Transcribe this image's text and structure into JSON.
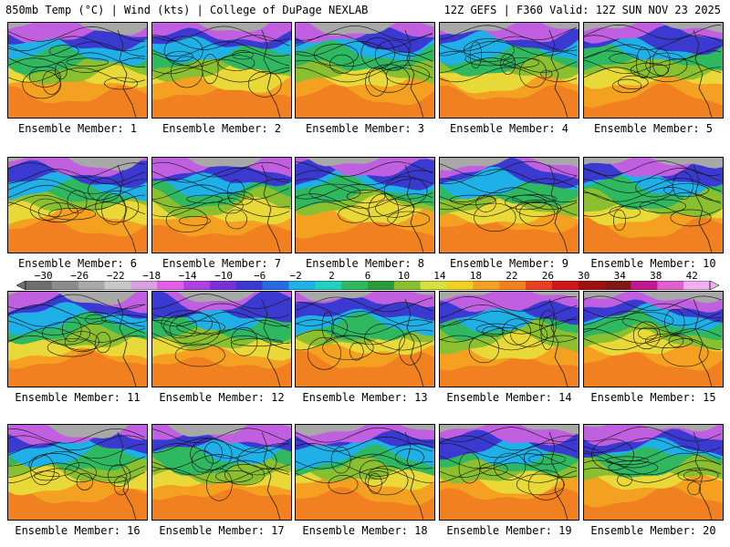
{
  "header": {
    "left": "850mb Temp (°C) | Wind (kts) | College of DuPage NEXLAB",
    "right": "12Z GEFS | F360 Valid: 12Z SUN NOV 23 2025"
  },
  "panels": [
    {
      "label": "Ensemble Member: 1"
    },
    {
      "label": "Ensemble Member: 2"
    },
    {
      "label": "Ensemble Member: 3"
    },
    {
      "label": "Ensemble Member: 4"
    },
    {
      "label": "Ensemble Member: 5"
    },
    {
      "label": "Ensemble Member: 6"
    },
    {
      "label": "Ensemble Member: 7"
    },
    {
      "label": "Ensemble Member: 8"
    },
    {
      "label": "Ensemble Member: 9"
    },
    {
      "label": "Ensemble Member: 10"
    },
    {
      "label": "Ensemble Member: 11"
    },
    {
      "label": "Ensemble Member: 12"
    },
    {
      "label": "Ensemble Member: 13"
    },
    {
      "label": "Ensemble Member: 14"
    },
    {
      "label": "Ensemble Member: 15"
    },
    {
      "label": "Ensemble Member: 16"
    },
    {
      "label": "Ensemble Member: 17"
    },
    {
      "label": "Ensemble Member: 18"
    },
    {
      "label": "Ensemble Member: 19"
    },
    {
      "label": "Ensemble Member: 20"
    }
  ],
  "chart_data": {
    "type": "heatmap",
    "title": "850mb Temp (°C) | Wind (kts)",
    "units": "°C",
    "scale_ticks": [
      "−30",
      "−26",
      "−22",
      "−18",
      "−14",
      "−10",
      "−6",
      "−2",
      "2",
      "6",
      "10",
      "14",
      "18",
      "22",
      "26",
      "30",
      "34",
      "38",
      "42"
    ],
    "scale_min": -32,
    "scale_max": 44,
    "scale_colors": [
      "#6e6e6e",
      "#8c8c8c",
      "#a8a8a8",
      "#c8c8c8",
      "#d8a0e0",
      "#e060e8",
      "#b040e0",
      "#7a30d8",
      "#3a3ad0",
      "#2a6ae0",
      "#20b0e8",
      "#20d0c0",
      "#30b860",
      "#2a9a3a",
      "#8ac030",
      "#d8e040",
      "#f0d020",
      "#f4a020",
      "#f08020",
      "#e84020",
      "#d01818",
      "#a01010",
      "#801818",
      "#c01890",
      "#e060d0",
      "#f0b0f0"
    ]
  }
}
